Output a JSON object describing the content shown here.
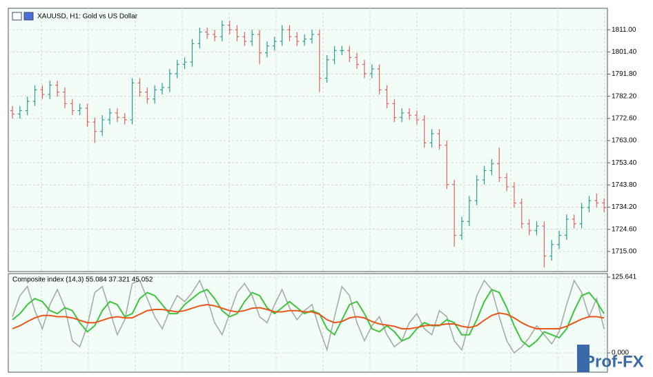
{
  "chart_data": [
    {
      "type": "ohlc",
      "title": "XAUUSD, H1:  Gold vs US Dollar",
      "up_color": "#2a9d8f",
      "down_color": "#e06060",
      "grid": true,
      "ylim": [
        1706.3,
        1820.3
      ],
      "yticks": [
        {
          "value": 1811,
          "label": "1811.00"
        },
        {
          "value": 1801.4,
          "label": "1801.40"
        },
        {
          "value": 1791.8,
          "label": "1791.80"
        },
        {
          "value": 1782.2,
          "label": "1782.20"
        },
        {
          "value": 1772.6,
          "label": "1772.60"
        },
        {
          "value": 1763,
          "label": "1763.00"
        },
        {
          "value": 1753.4,
          "label": "1753.40"
        },
        {
          "value": 1743.8,
          "label": "1743.80"
        },
        {
          "value": 1734.2,
          "label": "1734.20"
        },
        {
          "value": 1724.6,
          "label": "1724.60"
        },
        {
          "value": 1715,
          "label": "1715.00"
        }
      ],
      "open": [
        1776,
        1774.5,
        1776,
        1780,
        1785,
        1783,
        1787,
        1784,
        1779,
        1776,
        1777,
        1771,
        1767,
        1772,
        1775,
        1773,
        1772,
        1788,
        1784,
        1781,
        1785,
        1786,
        1792,
        1796,
        1797,
        1805,
        1810,
        1809,
        1808,
        1813,
        1811,
        1808,
        1806,
        1809,
        1801,
        1804,
        1806,
        1811,
        1808,
        1806,
        1807,
        1809,
        1790,
        1798,
        1802,
        1802,
        1799,
        1796,
        1792,
        1794,
        1785,
        1779,
        1773,
        1775,
        1774,
        1772,
        1762,
        1766,
        1761,
        1744,
        1722,
        1728,
        1737,
        1746,
        1750,
        1753,
        1747,
        1743,
        1736,
        1727,
        1724,
        1726,
        1713,
        1718,
        1722,
        1729,
        1727,
        1734,
        1737,
        1736
      ],
      "high": [
        1778,
        1778,
        1782,
        1787,
        1787,
        1789,
        1789,
        1786,
        1781,
        1779,
        1779,
        1773,
        1774,
        1777,
        1777,
        1775,
        1790,
        1790,
        1786,
        1787,
        1788,
        1794,
        1798,
        1799,
        1807,
        1812,
        1812,
        1811,
        1815,
        1815,
        1813,
        1810,
        1811,
        1811,
        1806,
        1808,
        1813,
        1813,
        1810,
        1809,
        1811,
        1811,
        1800,
        1804,
        1804,
        1804,
        1801,
        1798,
        1796,
        1796,
        1787,
        1781,
        1777,
        1777,
        1776,
        1774,
        1768,
        1768,
        1763,
        1746,
        1730,
        1739,
        1748,
        1752,
        1755,
        1760,
        1749,
        1745,
        1738,
        1729,
        1728,
        1728,
        1720,
        1724,
        1731,
        1731,
        1736,
        1739,
        1740,
        1738
      ],
      "low": [
        1772.5,
        1772.5,
        1774,
        1778,
        1781,
        1781,
        1782,
        1777,
        1774,
        1774,
        1769,
        1762,
        1765,
        1770,
        1771,
        1770,
        1770,
        1782,
        1779,
        1779,
        1783,
        1784,
        1790,
        1794,
        1795,
        1803,
        1807,
        1806,
        1806,
        1809,
        1806,
        1804,
        1804,
        1796,
        1799,
        1802,
        1804,
        1806,
        1804,
        1804,
        1805,
        1784,
        1788,
        1796,
        1800,
        1797,
        1794,
        1790,
        1790,
        1783,
        1777,
        1771,
        1771,
        1772,
        1770,
        1760,
        1760,
        1759,
        1742,
        1717,
        1720,
        1726,
        1735,
        1744,
        1748,
        1745,
        1741,
        1734,
        1725,
        1722,
        1722,
        1708,
        1711,
        1716,
        1720,
        1725,
        1725,
        1732,
        1734,
        1732
      ],
      "close": [
        1774.5,
        1776,
        1780,
        1785,
        1783,
        1787,
        1784,
        1779,
        1776,
        1777,
        1771,
        1767,
        1772,
        1775,
        1773,
        1772,
        1788,
        1784,
        1781,
        1785,
        1786,
        1792,
        1796,
        1797,
        1805,
        1810,
        1809,
        1808,
        1813,
        1811,
        1808,
        1806,
        1809,
        1801,
        1804,
        1806,
        1811,
        1808,
        1806,
        1807,
        1809,
        1790,
        1798,
        1802,
        1802,
        1799,
        1796,
        1792,
        1794,
        1785,
        1779,
        1773,
        1775,
        1774,
        1772,
        1762,
        1766,
        1761,
        1744,
        1722,
        1728,
        1737,
        1746,
        1750,
        1753,
        1747,
        1743,
        1736,
        1727,
        1724,
        1726,
        1713,
        1718,
        1722,
        1729,
        1727,
        1734,
        1737,
        1736,
        1734
      ]
    },
    {
      "type": "line",
      "title": "Composite index (14,3) 55.084 37.321 45.052",
      "grid": true,
      "ylim": [
        -32,
        131.4
      ],
      "yticks": [
        125.641,
        {
          "value": 0,
          "label": "0.000"
        }
      ],
      "series": [
        {
          "color": "#a8a8a8",
          "values": [
            60,
            95,
            110,
            70,
            40,
            80,
            105,
            75,
            20,
            10,
            45,
            100,
            110,
            70,
            30,
            55,
            115,
            120,
            90,
            60,
            40,
            70,
            95,
            85,
            100,
            120,
            90,
            50,
            30,
            65,
            100,
            115,
            95,
            60,
            50,
            80,
            105,
            75,
            55,
            70,
            80,
            40,
            5,
            60,
            110,
            95,
            50,
            20,
            45,
            60,
            30,
            10,
            20,
            50,
            65,
            40,
            30,
            70,
            60,
            20,
            5,
            50,
            95,
            120,
            105,
            60,
            20,
            0,
            10,
            25,
            45,
            30,
            15,
            35,
            80,
            120,
            100,
            60,
            90,
            40
          ]
        },
        {
          "color": "#3cc43c",
          "values": [
            55,
            65,
            80,
            90,
            85,
            70,
            65,
            75,
            70,
            50,
            35,
            45,
            70,
            85,
            80,
            60,
            65,
            90,
            100,
            95,
            80,
            65,
            65,
            80,
            90,
            100,
            105,
            90,
            70,
            60,
            65,
            85,
            100,
            95,
            75,
            65,
            75,
            85,
            75,
            65,
            70,
            65,
            40,
            30,
            55,
            80,
            85,
            65,
            40,
            35,
            45,
            35,
            20,
            25,
            40,
            50,
            45,
            45,
            55,
            50,
            30,
            30,
            55,
            85,
            105,
            100,
            75,
            45,
            20,
            10,
            20,
            35,
            30,
            25,
            40,
            70,
            95,
            100,
            85,
            65
          ]
        },
        {
          "color": "#e8551a",
          "values": [
            40,
            45,
            52,
            58,
            62,
            62,
            60,
            60,
            58,
            54,
            50,
            50,
            54,
            58,
            60,
            58,
            58,
            64,
            70,
            72,
            72,
            70,
            68,
            70,
            74,
            78,
            80,
            78,
            74,
            70,
            68,
            70,
            74,
            75,
            72,
            68,
            68,
            70,
            70,
            68,
            68,
            64,
            55,
            50,
            52,
            58,
            60,
            58,
            52,
            48,
            46,
            44,
            40,
            40,
            42,
            45,
            46,
            46,
            48,
            48,
            44,
            42,
            45,
            54,
            62,
            66,
            64,
            58,
            50,
            44,
            40,
            40,
            40,
            40,
            44,
            50,
            56,
            60,
            60,
            58
          ]
        }
      ]
    }
  ],
  "watermark": "Prof-FX"
}
